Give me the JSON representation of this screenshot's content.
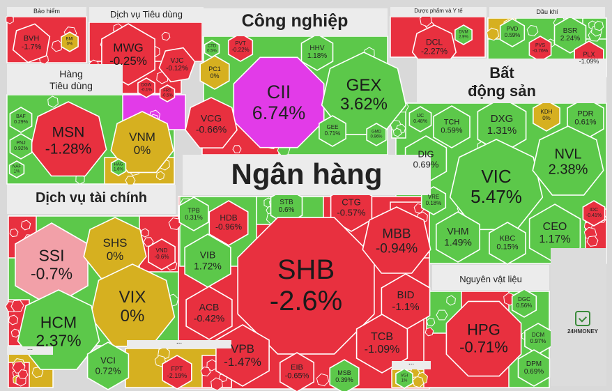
{
  "colors": {
    "up": "#5cc84a",
    "down": "#e8303f",
    "flat": "#d6b020",
    "ceiling": "#e23be8",
    "floor_light": "#f2a0a8",
    "background": "#d9d9d9"
  },
  "sectors": {
    "bao_hiem": "Bảo hiểm",
    "dich_vu_tieu_dung": "Dịch vụ Tiêu dùng",
    "cong_nghiep": "Công nghiệp",
    "duoc_pham": "Dược phẩm và Y tế",
    "dau_khi": "Dầu khí",
    "hang_tieu_dung_1": "Hàng",
    "hang_tieu_dung_2": "Tiêu dùng",
    "bat_dong_san_1": "Bất",
    "bat_dong_san_2": "động sản",
    "ngan_hang": "Ngân hàng",
    "dich_vu_tai_chinh": "Dịch vụ tài chính",
    "nguyen_vat_lieu": "Nguyên vật liệu",
    "other": "..."
  },
  "stocks": {
    "BVH": {
      "t": "BVH",
      "v": "-1.7%"
    },
    "BMI": {
      "t": "BMI",
      "v": "0%"
    },
    "MWG": {
      "t": "MWG",
      "v": "-0.25%"
    },
    "VJC": {
      "t": "VJC",
      "v": "-0.12%"
    },
    "DGW": {
      "t": "DGW",
      "v": "-0.1%"
    },
    "FRT": {
      "t": "FRT",
      "v": "-0.5%"
    },
    "CTD": {
      "t": "CTD",
      "v": "0.5%"
    },
    "PVT": {
      "t": "PVT",
      "v": "-0.22%"
    },
    "HHV": {
      "t": "HHV",
      "v": "1.18%"
    },
    "PC1": {
      "t": "PC1",
      "v": "0%"
    },
    "CII": {
      "t": "CII",
      "v": "6.74%"
    },
    "GEX": {
      "t": "GEX",
      "v": "3.62%"
    },
    "VCG": {
      "t": "VCG",
      "v": "-0.66%"
    },
    "GEE": {
      "t": "GEE",
      "v": "0.71%"
    },
    "GMD": {
      "t": "GMD",
      "v": "0.96%"
    },
    "DCL": {
      "t": "DCL",
      "v": "-2.27%"
    },
    "DVM": {
      "t": "DVM",
      "v": "2.9%"
    },
    "PVD": {
      "t": "PVD",
      "v": "0.59%"
    },
    "PVS": {
      "t": "PVS",
      "v": "-0.76%"
    },
    "BSR": {
      "t": "BSR",
      "v": "2.24%"
    },
    "PLX": {
      "t": "PLX",
      "v": "-1.09%"
    },
    "MSN": {
      "t": "MSN",
      "v": "-1.28%"
    },
    "VNM": {
      "t": "VNM",
      "v": "0%"
    },
    "BAF": {
      "t": "BAF",
      "v": "0.29%"
    },
    "PNJ": {
      "t": "PNJ",
      "v": "0.92%"
    },
    "NAF": {
      "t": "NAF",
      "v": "1%"
    },
    "HAG": {
      "t": "HAG",
      "v": "1.6%"
    },
    "IJC": {
      "t": "IJC",
      "v": "0.48%"
    },
    "TCH": {
      "t": "TCH",
      "v": "0.59%"
    },
    "DXG": {
      "t": "DXG",
      "v": "1.31%"
    },
    "KDH": {
      "t": "KDH",
      "v": "0%"
    },
    "PDR": {
      "t": "PDR",
      "v": "0.61%"
    },
    "DIG": {
      "t": "DIG",
      "v": "0.69%"
    },
    "VIC": {
      "t": "VIC",
      "v": "5.47%"
    },
    "NVL": {
      "t": "NVL",
      "v": "2.38%"
    },
    "VRE": {
      "t": "VRE",
      "v": "0.18%"
    },
    "IDC": {
      "t": "IDC",
      "v": "-0.41%"
    },
    "VHM": {
      "t": "VHM",
      "v": "1.49%"
    },
    "KBC": {
      "t": "KBC",
      "v": "0.15%"
    },
    "CEO": {
      "t": "CEO",
      "v": "1.17%"
    },
    "TPB": {
      "t": "TPB",
      "v": "0.31%"
    },
    "HDB": {
      "t": "HDB",
      "v": "-0.96%"
    },
    "STB": {
      "t": "STB",
      "v": "0.6%"
    },
    "CTG": {
      "t": "CTG",
      "v": "-0.57%"
    },
    "VIB": {
      "t": "VIB",
      "v": "1.72%"
    },
    "SHB": {
      "t": "SHB",
      "v": "-2.6%"
    },
    "MBB": {
      "t": "MBB",
      "v": "-0.94%"
    },
    "BID": {
      "t": "BID",
      "v": "-1.1%"
    },
    "ACB": {
      "t": "ACB",
      "v": "-0.42%"
    },
    "VPB": {
      "t": "VPB",
      "v": "-1.47%"
    },
    "TCB": {
      "t": "TCB",
      "v": "-1.09%"
    },
    "EIB": {
      "t": "EIB",
      "v": "-0.65%"
    },
    "MSB": {
      "t": "MSB",
      "v": "0.39%"
    },
    "SSI": {
      "t": "SSI",
      "v": "-0.7%"
    },
    "SHS": {
      "t": "SHS",
      "v": "0%"
    },
    "VND": {
      "t": "VND",
      "v": "-0.6%"
    },
    "VIX": {
      "t": "VIX",
      "v": "0%"
    },
    "HCM": {
      "t": "HCM",
      "v": "2.37%"
    },
    "VCI": {
      "t": "VCI",
      "v": "0.72%"
    },
    "FPT": {
      "t": "FPT",
      "v": "-2.19%"
    },
    "VGI": {
      "t": "VGI",
      "v": "1%"
    },
    "HPG": {
      "t": "HPG",
      "v": "-0.71%"
    },
    "DGC": {
      "t": "DGC",
      "v": "0.56%"
    },
    "DCM": {
      "t": "DCM",
      "v": "0.97%"
    },
    "DPM": {
      "t": "DPM",
      "v": "0.69%"
    }
  },
  "logo": "24HMONEY"
}
